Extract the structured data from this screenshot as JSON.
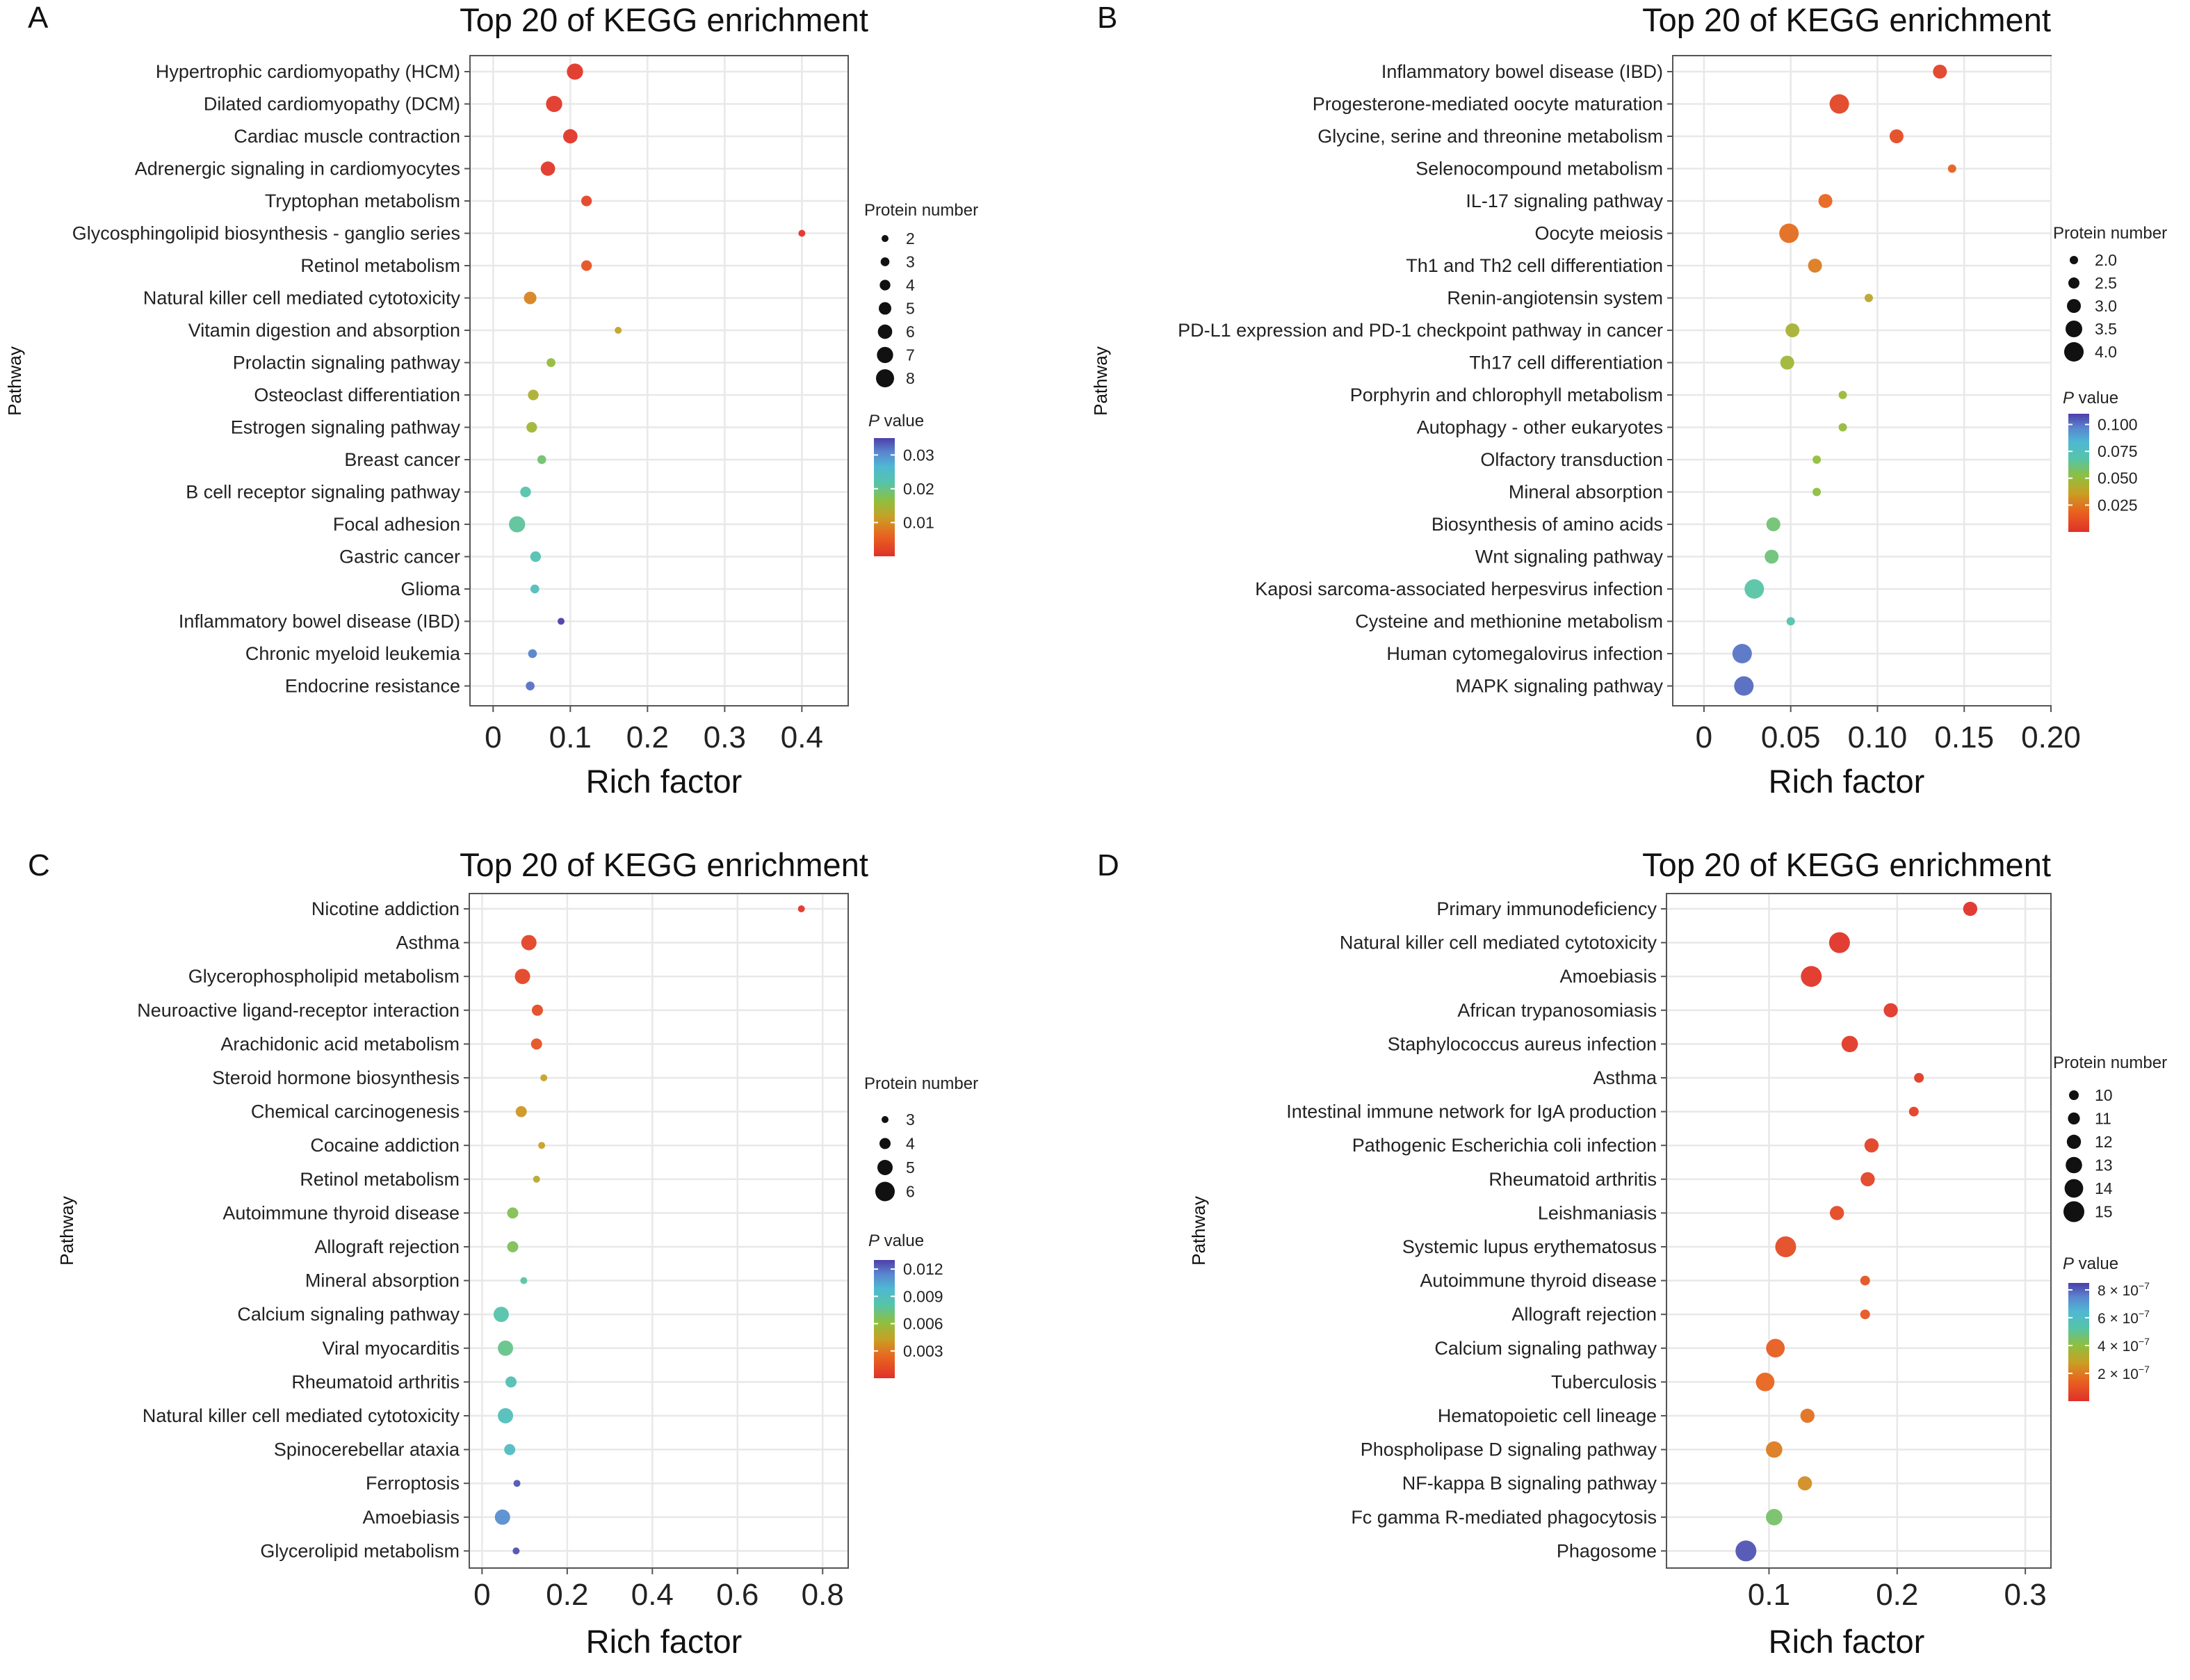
{
  "chart_data": [
    {
      "panel": "A",
      "type": "scatter",
      "title": "Top 20 of KEGG enrichment",
      "xlabel": "Rich factor",
      "ylabel": "Pathway",
      "xlim": [
        -0.03,
        0.46
      ],
      "xticks": [
        0,
        0.1,
        0.2,
        0.3,
        0.4
      ],
      "xtick_labels": [
        "0",
        "0.1",
        "0.2",
        "0.3",
        "0.4"
      ],
      "grid": true,
      "size_legend": {
        "title": "Protein number",
        "values": [
          2,
          3,
          4,
          5,
          6,
          7,
          8
        ],
        "labels": [
          "2",
          "3",
          "4",
          "5",
          "6",
          "7",
          "8"
        ]
      },
      "color_legend": {
        "title_italic": "P",
        "title_rest": " value",
        "min": 0,
        "max": 0.035,
        "tick_values": [
          0.01,
          0.02,
          0.03
        ],
        "tick_labels": [
          "0.01",
          "0.02",
          "0.03"
        ]
      },
      "pathways": [
        "Hypertrophic cardiomyopathy (HCM)",
        "Dilated cardiomyopathy (DCM)",
        "Cardiac muscle contraction",
        "Adrenergic signaling in cardiomyocytes",
        "Tryptophan metabolism",
        "Glycosphingolipid biosynthesis - ganglio series",
        "Retinol metabolism",
        "Natural killer cell mediated cytotoxicity",
        "Vitamin digestion and absorption",
        "Prolactin signaling pathway",
        "Osteoclast differentiation",
        "Estrogen signaling pathway",
        "Breast cancer",
        "B cell receptor signaling pathway",
        "Focal adhesion",
        "Gastric cancer",
        "Glioma",
        "Inflammatory bowel disease (IBD)",
        "Chronic myeloid leukemia",
        "Endocrine resistance"
      ],
      "rich_factor": [
        0.106,
        0.079,
        0.1,
        0.071,
        0.121,
        0.4,
        0.121,
        0.048,
        0.162,
        0.075,
        0.052,
        0.05,
        0.063,
        0.042,
        0.031,
        0.055,
        0.054,
        0.088,
        0.051,
        0.048
      ],
      "protein_number": [
        7,
        7,
        6,
        6,
        4,
        2,
        4,
        5,
        2,
        3,
        4,
        4,
        3,
        4,
        7,
        4,
        3,
        2,
        3,
        3
      ],
      "p_value": [
        0.0006,
        0.0008,
        0.0006,
        0.0007,
        0.0025,
        0.0002,
        0.004,
        0.009,
        0.012,
        0.016,
        0.014,
        0.015,
        0.019,
        0.022,
        0.021,
        0.023,
        0.024,
        0.045,
        0.031,
        0.032
      ]
    },
    {
      "panel": "B",
      "type": "scatter",
      "title": "Top 20 of KEGG enrichment",
      "xlabel": "Rich factor",
      "ylabel": "Pathway",
      "xlim": [
        -0.018,
        0.2
      ],
      "xticks": [
        0,
        0.05,
        0.1,
        0.15,
        0.2
      ],
      "xtick_labels": [
        "0",
        "0.05",
        "0.10",
        "0.15",
        "0.20"
      ],
      "grid": true,
      "size_legend": {
        "title": "Protein number",
        "values": [
          2.0,
          2.5,
          3.0,
          3.5,
          4.0
        ],
        "labels": [
          "2.0",
          "2.5",
          "3.0",
          "3.5",
          "4.0"
        ]
      },
      "color_legend": {
        "title_italic": "P",
        "title_rest": " value",
        "min": 0,
        "max": 0.11,
        "tick_values": [
          0.025,
          0.05,
          0.075,
          0.1
        ],
        "tick_labels": [
          "0.025",
          "0.050",
          "0.075",
          "0.100"
        ]
      },
      "pathways": [
        "Inflammatory bowel disease (IBD)",
        "Progesterone-mediated oocyte maturation",
        "Glycine, serine and threonine metabolism",
        "Selenocompound metabolism",
        "IL-17 signaling pathway",
        "Oocyte meiosis",
        "Th1 and Th2 cell differentiation",
        "Renin-angiotensin system",
        "PD-L1 expression and PD-1 checkpoint pathway in cancer",
        "Th17 cell differentiation",
        "Porphyrin and chlorophyll metabolism",
        "Autophagy - other eukaryotes",
        "Olfactory transduction",
        "Mineral absorption",
        "Biosynthesis of amino acids",
        "Wnt signaling pathway",
        "Kaposi sarcoma-associated herpesvirus infection",
        "Cysteine and methionine metabolism",
        "Human cytomegalovirus infection",
        "MAPK signaling pathway"
      ],
      "rich_factor": [
        0.136,
        0.078,
        0.111,
        0.143,
        0.07,
        0.049,
        0.064,
        0.095,
        0.051,
        0.048,
        0.08,
        0.08,
        0.065,
        0.065,
        0.04,
        0.039,
        0.029,
        0.05,
        0.022,
        0.023
      ],
      "protein_number": [
        3,
        4,
        3,
        2,
        3,
        4,
        3,
        2,
        3,
        3,
        2,
        2,
        2,
        2,
        3,
        3,
        4,
        2,
        4,
        4
      ],
      "p_value": [
        0.006,
        0.008,
        0.01,
        0.018,
        0.02,
        0.022,
        0.026,
        0.04,
        0.045,
        0.047,
        0.048,
        0.05,
        0.051,
        0.052,
        0.06,
        0.061,
        0.068,
        0.07,
        0.1,
        0.102
      ]
    },
    {
      "panel": "C",
      "type": "scatter",
      "title": "Top 20 of KEGG enrichment",
      "xlabel": "Rich factor",
      "ylabel": "Pathway",
      "xlim": [
        -0.03,
        0.86
      ],
      "xticks": [
        0,
        0.2,
        0.4,
        0.6,
        0.8
      ],
      "xtick_labels": [
        "0",
        "0.2",
        "0.4",
        "0.6",
        "0.8"
      ],
      "grid": true,
      "size_legend": {
        "title": "Protein number",
        "values": [
          3,
          4,
          5,
          6
        ],
        "labels": [
          "3",
          "4",
          "5",
          "6"
        ]
      },
      "color_legend": {
        "title_italic": "P",
        "title_rest": " value",
        "min": 0,
        "max": 0.013,
        "tick_values": [
          0.003,
          0.006,
          0.009,
          0.012
        ],
        "tick_labels": [
          "0.003",
          "0.006",
          "0.009",
          "0.012"
        ]
      },
      "pathways": [
        "Nicotine addiction",
        "Asthma",
        "Glycerophospholipid metabolism",
        "Neuroactive ligand-receptor interaction",
        "Arachidonic acid metabolism",
        "Steroid hormone biosynthesis",
        "Chemical carcinogenesis",
        "Cocaine addiction",
        "Retinol metabolism",
        "Autoimmune thyroid disease",
        "Allograft rejection",
        "Mineral absorption",
        "Calcium signaling pathway",
        "Viral myocarditis",
        "Rheumatoid arthritis",
        "Natural killer cell mediated cytotoxicity",
        "Spinocerebellar ataxia",
        "Ferroptosis",
        "Amoebiasis",
        "Glycerolipid metabolism"
      ],
      "rich_factor": [
        0.75,
        0.11,
        0.095,
        0.13,
        0.128,
        0.145,
        0.092,
        0.14,
        0.128,
        0.072,
        0.072,
        0.098,
        0.045,
        0.055,
        0.068,
        0.055,
        0.065,
        0.082,
        0.048,
        0.08
      ],
      "protein_number": [
        3,
        5,
        5,
        4,
        4,
        3,
        4,
        3,
        3,
        4,
        4,
        3,
        5,
        5,
        4,
        5,
        4,
        3,
        5,
        3
      ],
      "p_value": [
        0.0002,
        0.0008,
        0.0009,
        0.0012,
        0.0015,
        0.0045,
        0.004,
        0.0043,
        0.0048,
        0.0065,
        0.0066,
        0.008,
        0.0082,
        0.0075,
        0.0086,
        0.0088,
        0.0092,
        0.0125,
        0.0112,
        0.0126
      ]
    },
    {
      "panel": "D",
      "type": "scatter",
      "title": "Top 20 of KEGG enrichment",
      "xlabel": "Rich factor",
      "ylabel": "Pathway",
      "xlim": [
        0.02,
        0.32
      ],
      "xticks": [
        0.1,
        0.2,
        0.3
      ],
      "xtick_labels": [
        "0.1",
        "0.2",
        "0.3"
      ],
      "grid": true,
      "size_legend": {
        "title": "Protein number",
        "values": [
          10,
          11,
          12,
          13,
          14,
          15
        ],
        "labels": [
          "10",
          "11",
          "12",
          "13",
          "14",
          "15"
        ]
      },
      "color_legend": {
        "title_italic": "P",
        "title_rest": " value",
        "min": 0,
        "max": 8.5e-07,
        "tick_values": [
          2e-07,
          4e-07,
          6e-07,
          8e-07
        ],
        "tick_labels": [
          {
            "base": "2 × 10",
            "exp": "−7"
          },
          {
            "base": "4 × 10",
            "exp": "−7"
          },
          {
            "base": "6 × 10",
            "exp": "−7"
          },
          {
            "base": "8 × 10",
            "exp": "−7"
          }
        ]
      },
      "pathways": [
        "Primary immunodeficiency",
        "Natural killer cell mediated cytotoxicity",
        "Amoebiasis",
        "African trypanosomiasis",
        "Staphylococcus aureus infection",
        "Asthma",
        "Intestinal immune network for IgA production",
        "Pathogenic Escherichia coli infection",
        "Rheumatoid arthritis",
        "Leishmaniasis",
        "Systemic lupus erythematosus",
        "Autoimmune thyroid disease",
        "Allograft rejection",
        "Calcium signaling pathway",
        "Tuberculosis",
        "Hematopoietic cell lineage",
        "Phospholipase D signaling pathway",
        "NF-kappa B signaling pathway",
        "Fc gamma R-mediated phagocytosis",
        "Phagosome"
      ],
      "rich_factor": [
        0.257,
        0.155,
        0.133,
        0.195,
        0.163,
        0.217,
        0.213,
        0.18,
        0.177,
        0.153,
        0.113,
        0.175,
        0.175,
        0.105,
        0.097,
        0.13,
        0.104,
        0.128,
        0.104,
        0.082
      ],
      "protein_number": [
        12,
        15,
        15,
        12,
        13,
        10,
        10,
        12,
        12,
        12,
        15,
        10,
        10,
        14,
        14,
        12,
        13,
        12,
        13,
        15
      ],
      "p_value": [
        5e-09,
        1e-08,
        1.5e-08,
        2e-08,
        2.5e-08,
        3e-08,
        4e-08,
        5e-08,
        6e-08,
        7e-08,
        8e-08,
        1e-07,
        1.1e-07,
        1.3e-07,
        1.5e-07,
        1.8e-07,
        2e-07,
        2.4e-07,
        4.5e-07,
        8.2e-07
      ]
    }
  ]
}
